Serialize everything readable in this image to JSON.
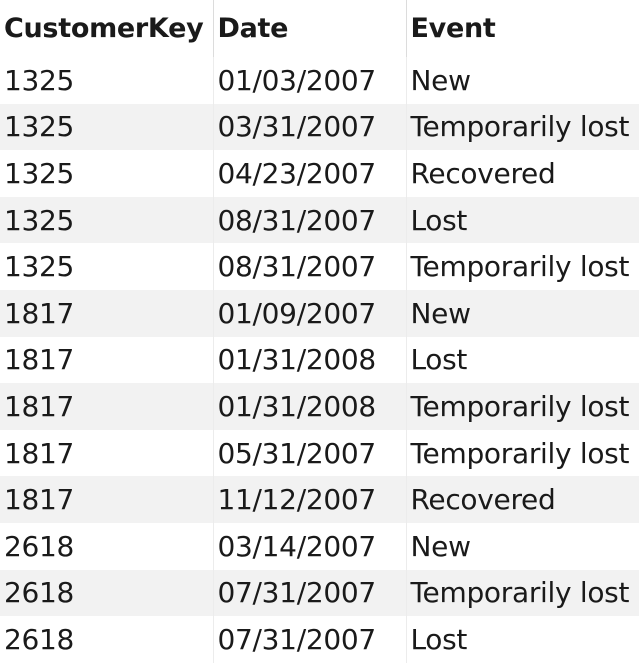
{
  "table": {
    "columns": [
      "CustomerKey",
      "Date",
      "Event"
    ],
    "rows": [
      [
        "1325",
        "01/03/2007",
        "New"
      ],
      [
        "1325",
        "03/31/2007",
        "Temporarily lost"
      ],
      [
        "1325",
        "04/23/2007",
        "Recovered"
      ],
      [
        "1325",
        "08/31/2007",
        "Lost"
      ],
      [
        "1325",
        "08/31/2007",
        "Temporarily lost"
      ],
      [
        "1817",
        "01/09/2007",
        "New"
      ],
      [
        "1817",
        "01/31/2008",
        "Lost"
      ],
      [
        "1817",
        "01/31/2008",
        "Temporarily lost"
      ],
      [
        "1817",
        "05/31/2007",
        "Temporarily lost"
      ],
      [
        "1817",
        "11/12/2007",
        "Recovered"
      ],
      [
        "2618",
        "03/14/2007",
        "New"
      ],
      [
        "2618",
        "07/31/2007",
        "Temporarily lost"
      ],
      [
        "2618",
        "07/31/2007",
        "Lost"
      ]
    ]
  }
}
